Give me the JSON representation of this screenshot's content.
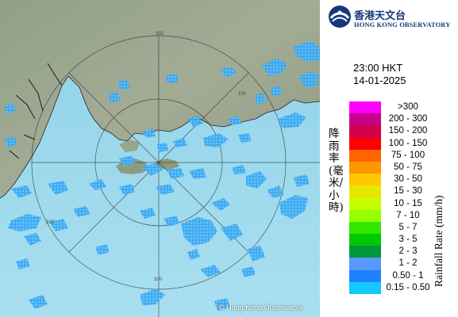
{
  "map": {
    "credit": "© Hong Kong Observatory",
    "range_labels": [
      "300",
      "100",
      "100",
      "100"
    ]
  },
  "logo": {
    "name_zh": "香港天文台",
    "name_en": "HONG KONG OBSERVATORY"
  },
  "timestamp": {
    "time": "23:00 HKT",
    "date": "14-01-2025"
  },
  "legend": {
    "title_zh": "降雨率(毫米/小時)",
    "title_en": "Rainfall Rate (mm/h)",
    "items": [
      {
        "label": ">300",
        "color": "#ff00ff"
      },
      {
        "label": "200 - 300",
        "color": "#c8008c"
      },
      {
        "label": "150 - 200",
        "color": "#d2004b"
      },
      {
        "label": "100 - 150",
        "color": "#ff0000"
      },
      {
        "label": "75 - 100",
        "color": "#ff6400"
      },
      {
        "label": "50 - 75",
        "color": "#ff9600"
      },
      {
        "label": "30 - 50",
        "color": "#ffc800"
      },
      {
        "label": "15 - 30",
        "color": "#e6e600"
      },
      {
        "label": "10 - 15",
        "color": "#c8ff00"
      },
      {
        "label": "7 - 10",
        "color": "#96ff00"
      },
      {
        "label": "5 - 7",
        "color": "#32e600"
      },
      {
        "label": "3 - 5",
        "color": "#00c800"
      },
      {
        "label": "2 - 3",
        "color": "#00963c"
      },
      {
        "label": "1 - 2",
        "color": "#5a96ff"
      },
      {
        "label": "0.50 - 1",
        "color": "#1e82ff"
      },
      {
        "label": "0.15 - 0.50",
        "color": "#14c8ff"
      }
    ]
  }
}
